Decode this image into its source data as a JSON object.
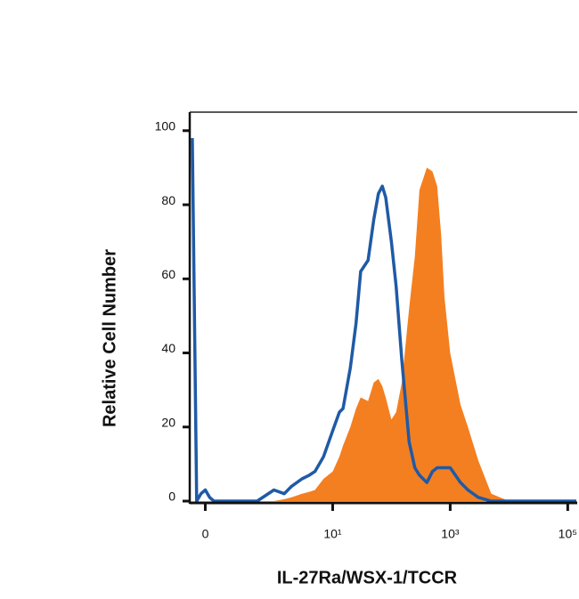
{
  "chart_data": {
    "type": "area",
    "xlabel": "IL-27Ra/WSX-1/TCCR",
    "ylabel": "Relative Cell Number",
    "xscale": "symlog",
    "linthresh": 0.68,
    "xlim": [
      -0.18,
      145000
    ],
    "ylim": [
      0,
      105
    ],
    "xticks": [
      0,
      {
        "value": 10,
        "label": "10¹"
      },
      {
        "value": 1000,
        "label": "10³"
      },
      {
        "value": 100000,
        "label": "10⁵"
      }
    ],
    "yticks": [
      0,
      20,
      40,
      60,
      80,
      100
    ],
    "x": [
      -0.15,
      -0.1,
      -0.05,
      0,
      0.05,
      0.1,
      0.2,
      0.4,
      0.6,
      1,
      1.5,
      2,
      3,
      4,
      5,
      7,
      10,
      13,
      15,
      20,
      25,
      30,
      40,
      50,
      60,
      70,
      80,
      100,
      120,
      150,
      200,
      250,
      300,
      400,
      500,
      600,
      700,
      800,
      1000,
      1500,
      2000,
      3000,
      5000,
      10000,
      100000,
      140000
    ],
    "series": [
      {
        "color": "#f47f20",
        "filled": true,
        "values": [
          0,
          0,
          0,
          0,
          0,
          0,
          0,
          0,
          0,
          0,
          0.5,
          1,
          2,
          2.5,
          3,
          6,
          8,
          12,
          15,
          20,
          25,
          28,
          27,
          32,
          33,
          31,
          28,
          22,
          24,
          32,
          52,
          66,
          84,
          90,
          89,
          85,
          72,
          55,
          40,
          26,
          20,
          11,
          2,
          0,
          0,
          0
        ]
      },
      {
        "color": "#1f5aa6",
        "filled": false,
        "values": [
          98,
          0,
          2,
          3,
          1,
          0,
          0,
          0,
          0,
          3,
          2,
          4,
          6,
          7,
          8,
          12,
          19,
          24,
          25,
          36,
          48,
          62,
          65,
          76,
          83,
          85,
          82,
          70,
          58,
          38,
          16,
          9,
          7,
          5,
          8,
          9,
          9,
          9,
          9,
          5,
          3,
          1,
          0,
          0,
          0,
          0
        ]
      }
    ]
  }
}
